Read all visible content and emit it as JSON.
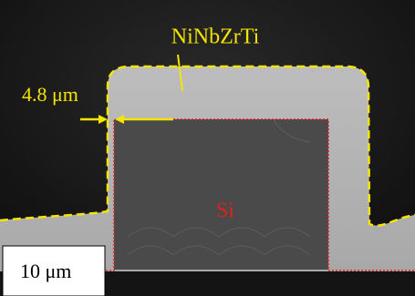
{
  "annotations": {
    "coating": "NiNbZrTi",
    "thickness": "4.8 μm",
    "substrate": "Si",
    "scale_bar": "10 μm"
  }
}
